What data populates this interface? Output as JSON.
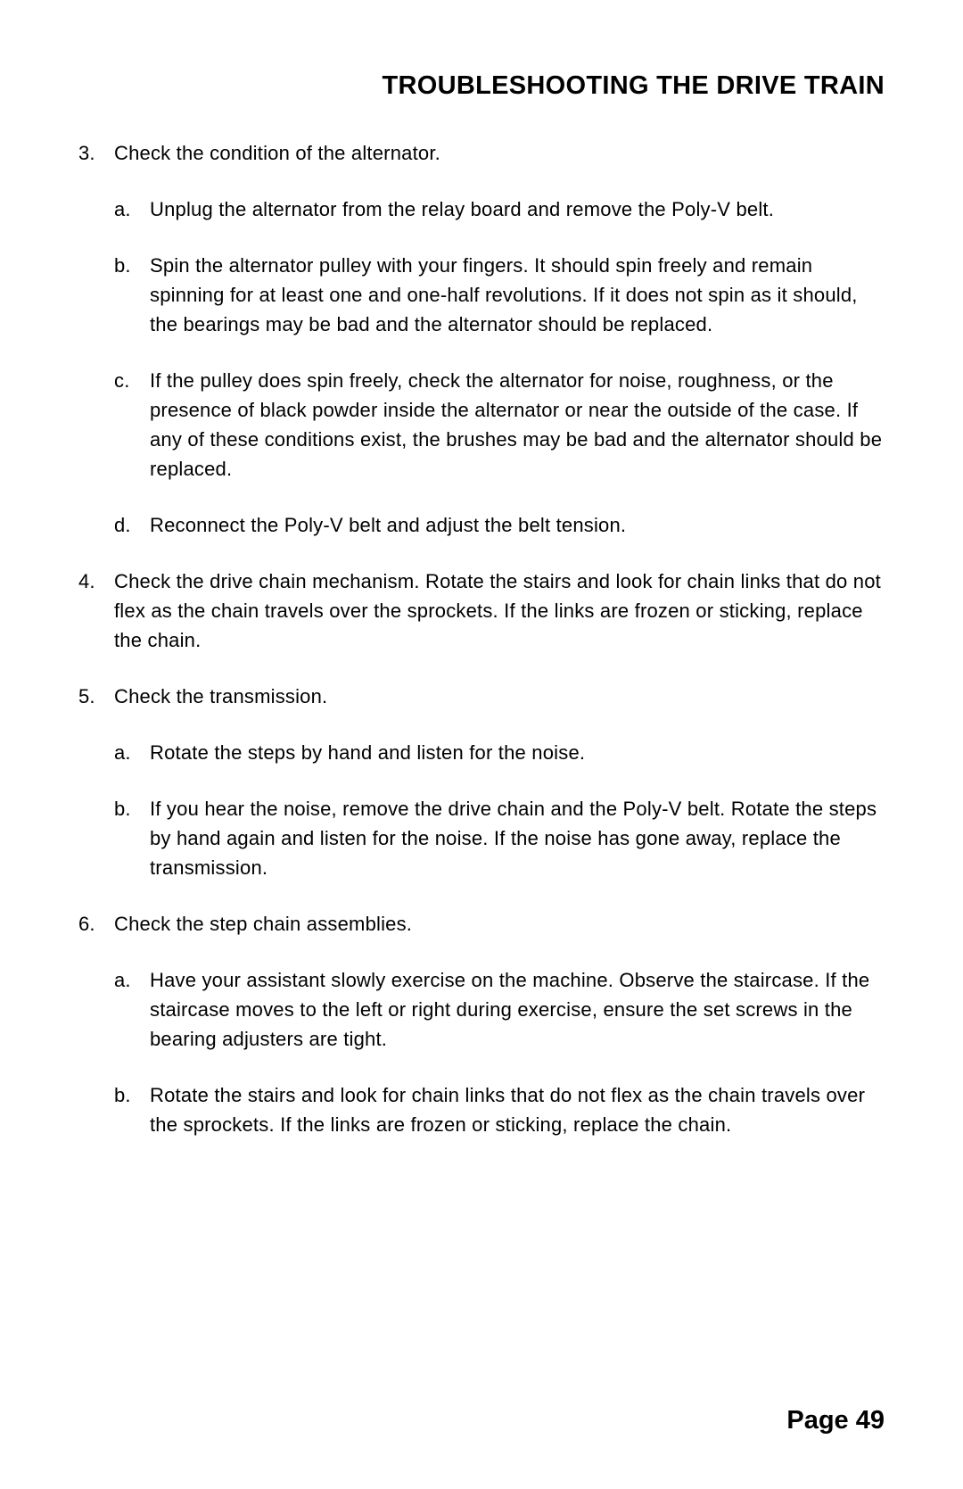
{
  "heading": "TROUBLESHOOTING THE DRIVE TRAIN",
  "page_number": "Page 49",
  "typography": {
    "heading_fontsize": 29,
    "heading_weight": "bold",
    "body_fontsize": 22,
    "line_height": 1.5,
    "page_number_fontsize": 29,
    "page_number_weight": "bold",
    "font_family": "Arial",
    "text_color": "#000000",
    "background_color": "#ffffff"
  },
  "items": [
    {
      "marker": "3.",
      "text": "Check the condition of the alternator.",
      "subs": [
        {
          "marker": "a.",
          "text": "Unplug the alternator from the relay board and remove the Poly-V belt."
        },
        {
          "marker": "b.",
          "text": "Spin the alternator pulley with your fingers. It should spin freely and remain spinning for at least one and one-half revolutions. If it does not spin as it should, the bearings may be bad and the alternator should be replaced."
        },
        {
          "marker": "c.",
          "text": "If the pulley does spin freely, check the alternator for noise, roughness, or the presence of black powder inside the alternator or near the outside of the case. If any of these conditions exist, the brushes may be bad and the alternator should be replaced."
        },
        {
          "marker": "d.",
          "text": "Reconnect the Poly-V belt and adjust the belt tension."
        }
      ]
    },
    {
      "marker": "4.",
      "text": "Check the drive chain mechanism. Rotate the stairs and look for chain links that do not flex as the chain travels over the sprockets. If the links are frozen or sticking, replace the chain.",
      "subs": []
    },
    {
      "marker": "5.",
      "text": "Check the transmission.",
      "subs": [
        {
          "marker": "a.",
          "text": "Rotate the steps by hand and listen for the noise."
        },
        {
          "marker": "b.",
          "text": "If you hear the noise, remove the drive chain and the Poly-V belt. Rotate the steps by hand again and listen for the noise. If the noise has gone away, replace the transmission."
        }
      ]
    },
    {
      "marker": "6.",
      "text": "Check the step chain assemblies.",
      "subs": [
        {
          "marker": "a.",
          "text": "Have your assistant slowly exercise on the machine. Observe the staircase. If the staircase moves to the left or right during exercise, ensure the set screws in the bearing adjusters are tight."
        },
        {
          "marker": "b.",
          "text": "Rotate the stairs and look for chain links that do not flex as the chain travels over the sprockets. If the links are frozen or sticking, replace the chain."
        }
      ]
    }
  ]
}
